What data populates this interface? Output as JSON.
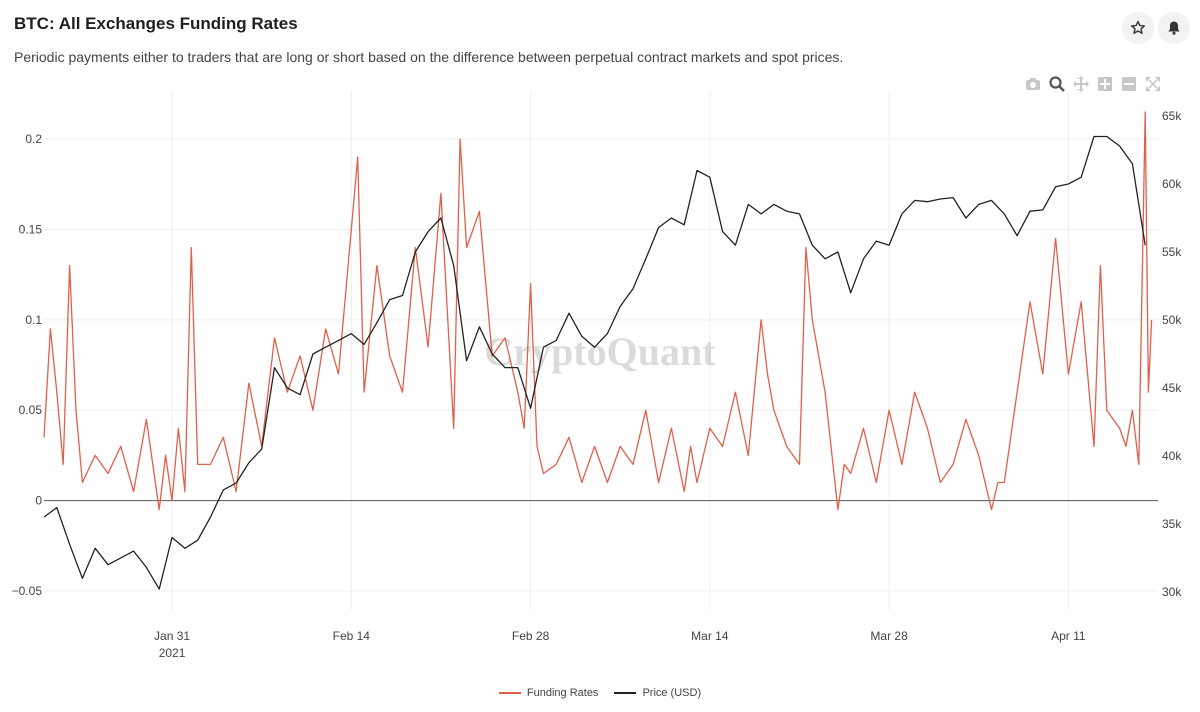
{
  "header": {
    "title": "BTC: All Exchanges Funding Rates",
    "subtitle": "Periodic payments either to traders that are long or short based on the difference between perpetual contract markets and spot prices.",
    "star_icon": "star-icon",
    "bell_icon": "bell-icon"
  },
  "modebar": [
    "camera-icon",
    "zoom-icon",
    "pan-icon",
    "zoom-in-icon",
    "zoom-out-icon",
    "autoscale-icon"
  ],
  "watermark": "CryptoQuant",
  "colors": {
    "funding": "#e0604a",
    "price": "#222222",
    "grid": "#eeeeee",
    "zero": "#555555"
  },
  "chart_data": {
    "type": "line",
    "x_range": [
      "2021-01-21",
      "2021-04-17"
    ],
    "x_ticks": [
      {
        "date": "2021-01-31",
        "label": "Jan 31",
        "sublabel": "2021"
      },
      {
        "date": "2021-02-14",
        "label": "Feb 14",
        "sublabel": ""
      },
      {
        "date": "2021-02-28",
        "label": "Feb 28",
        "sublabel": ""
      },
      {
        "date": "2021-03-14",
        "label": "Mar 14",
        "sublabel": ""
      },
      {
        "date": "2021-03-28",
        "label": "Mar 28",
        "sublabel": ""
      },
      {
        "date": "2021-04-11",
        "label": "Apr 11",
        "sublabel": ""
      }
    ],
    "y_left": {
      "range": [
        -0.055,
        0.215
      ],
      "ticks": [
        -0.05,
        0,
        0.05,
        0.1,
        0.15,
        0.2
      ],
      "tick_labels": [
        "−0.05",
        "0",
        "0.05",
        "0.1",
        "0.15",
        "0.2"
      ]
    },
    "y_right": {
      "range": [
        29400,
        65300
      ],
      "ticks": [
        30000,
        35000,
        40000,
        45000,
        50000,
        55000,
        60000,
        65000
      ],
      "tick_labels": [
        "30k",
        "35k",
        "40k",
        "45k",
        "50k",
        "55k",
        "60k",
        "65k"
      ]
    },
    "grid": true,
    "legend_position": "bottom-center",
    "series": [
      {
        "name": "Funding Rates",
        "axis": "left",
        "points": [
          [
            "2021-01-21",
            0.035
          ],
          [
            "2021-01-21T12",
            0.095
          ],
          [
            "2021-01-22",
            0.06
          ],
          [
            "2021-01-22T12",
            0.02
          ],
          [
            "2021-01-23",
            0.13
          ],
          [
            "2021-01-23T12",
            0.05
          ],
          [
            "2021-01-24",
            0.01
          ],
          [
            "2021-01-25",
            0.025
          ],
          [
            "2021-01-26",
            0.015
          ],
          [
            "2021-01-27",
            0.03
          ],
          [
            "2021-01-28",
            0.005
          ],
          [
            "2021-01-29",
            0.045
          ],
          [
            "2021-01-29T12",
            0.02
          ],
          [
            "2021-01-30",
            -0.005
          ],
          [
            "2021-01-30T12",
            0.025
          ],
          [
            "2021-01-31",
            0.0
          ],
          [
            "2021-01-31T12",
            0.04
          ],
          [
            "2021-02-01",
            0.005
          ],
          [
            "2021-02-01T12",
            0.14
          ],
          [
            "2021-02-02",
            0.02
          ],
          [
            "2021-02-03",
            0.02
          ],
          [
            "2021-02-04",
            0.035
          ],
          [
            "2021-02-05",
            0.005
          ],
          [
            "2021-02-06",
            0.065
          ],
          [
            "2021-02-07",
            0.03
          ],
          [
            "2021-02-08",
            0.09
          ],
          [
            "2021-02-09",
            0.06
          ],
          [
            "2021-02-10",
            0.08
          ],
          [
            "2021-02-11",
            0.05
          ],
          [
            "2021-02-12",
            0.095
          ],
          [
            "2021-02-13",
            0.07
          ],
          [
            "2021-02-14",
            0.15
          ],
          [
            "2021-02-14T12",
            0.19
          ],
          [
            "2021-02-15",
            0.06
          ],
          [
            "2021-02-16",
            0.13
          ],
          [
            "2021-02-17",
            0.08
          ],
          [
            "2021-02-18",
            0.06
          ],
          [
            "2021-02-19",
            0.14
          ],
          [
            "2021-02-20",
            0.085
          ],
          [
            "2021-02-21",
            0.17
          ],
          [
            "2021-02-22",
            0.04
          ],
          [
            "2021-02-22T12",
            0.2
          ],
          [
            "2021-02-23",
            0.14
          ],
          [
            "2021-02-24",
            0.16
          ],
          [
            "2021-02-25",
            0.08
          ],
          [
            "2021-02-26",
            0.09
          ],
          [
            "2021-02-27",
            0.06
          ],
          [
            "2021-02-27T12",
            0.04
          ],
          [
            "2021-02-28",
            0.12
          ],
          [
            "2021-02-28T12",
            0.03
          ],
          [
            "2021-03-01",
            0.015
          ],
          [
            "2021-03-02",
            0.02
          ],
          [
            "2021-03-03",
            0.035
          ],
          [
            "2021-03-04",
            0.01
          ],
          [
            "2021-03-05",
            0.03
          ],
          [
            "2021-03-06",
            0.01
          ],
          [
            "2021-03-07",
            0.03
          ],
          [
            "2021-03-08",
            0.02
          ],
          [
            "2021-03-09",
            0.05
          ],
          [
            "2021-03-10",
            0.01
          ],
          [
            "2021-03-11",
            0.04
          ],
          [
            "2021-03-12",
            0.005
          ],
          [
            "2021-03-12T12",
            0.03
          ],
          [
            "2021-03-13",
            0.01
          ],
          [
            "2021-03-14",
            0.04
          ],
          [
            "2021-03-15",
            0.03
          ],
          [
            "2021-03-16",
            0.06
          ],
          [
            "2021-03-17",
            0.025
          ],
          [
            "2021-03-18",
            0.1
          ],
          [
            "2021-03-18T12",
            0.07
          ],
          [
            "2021-03-19",
            0.05
          ],
          [
            "2021-03-20",
            0.03
          ],
          [
            "2021-03-21",
            0.02
          ],
          [
            "2021-03-21T12",
            0.14
          ],
          [
            "2021-03-22",
            0.1
          ],
          [
            "2021-03-23",
            0.06
          ],
          [
            "2021-03-24",
            -0.005
          ],
          [
            "2021-03-24T12",
            0.02
          ],
          [
            "2021-03-25",
            0.015
          ],
          [
            "2021-03-26",
            0.04
          ],
          [
            "2021-03-27",
            0.01
          ],
          [
            "2021-03-28",
            0.05
          ],
          [
            "2021-03-29",
            0.02
          ],
          [
            "2021-03-30",
            0.06
          ],
          [
            "2021-03-31",
            0.04
          ],
          [
            "2021-04-01",
            0.01
          ],
          [
            "2021-04-02",
            0.02
          ],
          [
            "2021-04-03",
            0.045
          ],
          [
            "2021-04-04",
            0.025
          ],
          [
            "2021-04-05",
            -0.005
          ],
          [
            "2021-04-05T12",
            0.01
          ],
          [
            "2021-04-06",
            0.01
          ],
          [
            "2021-04-07",
            0.06
          ],
          [
            "2021-04-08",
            0.11
          ],
          [
            "2021-04-09",
            0.07
          ],
          [
            "2021-04-10",
            0.145
          ],
          [
            "2021-04-11",
            0.07
          ],
          [
            "2021-04-12",
            0.11
          ],
          [
            "2021-04-13",
            0.03
          ],
          [
            "2021-04-13T12",
            0.13
          ],
          [
            "2021-04-14",
            0.05
          ],
          [
            "2021-04-15",
            0.04
          ],
          [
            "2021-04-15T12",
            0.03
          ],
          [
            "2021-04-16",
            0.05
          ],
          [
            "2021-04-16T12",
            0.02
          ],
          [
            "2021-04-17",
            0.215
          ],
          [
            "2021-04-17T06",
            0.06
          ],
          [
            "2021-04-17T12",
            0.1
          ]
        ]
      },
      {
        "name": "Price (USD)",
        "axis": "right",
        "points": [
          [
            "2021-01-21",
            35500
          ],
          [
            "2021-01-22",
            36200
          ],
          [
            "2021-01-23",
            33500
          ],
          [
            "2021-01-24",
            31000
          ],
          [
            "2021-01-25",
            33200
          ],
          [
            "2021-01-26",
            32000
          ],
          [
            "2021-01-27",
            32500
          ],
          [
            "2021-01-28",
            33000
          ],
          [
            "2021-01-29",
            31800
          ],
          [
            "2021-01-30",
            30200
          ],
          [
            "2021-01-31",
            34000
          ],
          [
            "2021-02-01",
            33200
          ],
          [
            "2021-02-02",
            33800
          ],
          [
            "2021-02-03",
            35500
          ],
          [
            "2021-02-04",
            37500
          ],
          [
            "2021-02-05",
            38000
          ],
          [
            "2021-02-06",
            39500
          ],
          [
            "2021-02-07",
            40500
          ],
          [
            "2021-02-08",
            46500
          ],
          [
            "2021-02-09",
            45000
          ],
          [
            "2021-02-10",
            44500
          ],
          [
            "2021-02-11",
            47500
          ],
          [
            "2021-02-12",
            48000
          ],
          [
            "2021-02-13",
            48500
          ],
          [
            "2021-02-14",
            49000
          ],
          [
            "2021-02-15",
            48200
          ],
          [
            "2021-02-16",
            49800
          ],
          [
            "2021-02-17",
            51500
          ],
          [
            "2021-02-18",
            51800
          ],
          [
            "2021-02-19",
            55000
          ],
          [
            "2021-02-20",
            56500
          ],
          [
            "2021-02-21",
            57500
          ],
          [
            "2021-02-22",
            54000
          ],
          [
            "2021-02-23",
            47000
          ],
          [
            "2021-02-24",
            49500
          ],
          [
            "2021-02-25",
            47500
          ],
          [
            "2021-02-26",
            46500
          ],
          [
            "2021-02-27",
            46500
          ],
          [
            "2021-02-28",
            43500
          ],
          [
            "2021-03-01",
            48000
          ],
          [
            "2021-03-02",
            48500
          ],
          [
            "2021-03-03",
            50500
          ],
          [
            "2021-03-04",
            48800
          ],
          [
            "2021-03-05",
            48000
          ],
          [
            "2021-03-06",
            49000
          ],
          [
            "2021-03-07",
            51000
          ],
          [
            "2021-03-08",
            52300
          ],
          [
            "2021-03-09",
            54500
          ],
          [
            "2021-03-10",
            56800
          ],
          [
            "2021-03-11",
            57500
          ],
          [
            "2021-03-12",
            57000
          ],
          [
            "2021-03-13",
            61000
          ],
          [
            "2021-03-14",
            60500
          ],
          [
            "2021-03-15",
            56500
          ],
          [
            "2021-03-16",
            55500
          ],
          [
            "2021-03-17",
            58500
          ],
          [
            "2021-03-18",
            57800
          ],
          [
            "2021-03-19",
            58500
          ],
          [
            "2021-03-20",
            58000
          ],
          [
            "2021-03-21",
            57800
          ],
          [
            "2021-03-22",
            55500
          ],
          [
            "2021-03-23",
            54500
          ],
          [
            "2021-03-24",
            55000
          ],
          [
            "2021-03-25",
            52000
          ],
          [
            "2021-03-26",
            54500
          ],
          [
            "2021-03-27",
            55800
          ],
          [
            "2021-03-28",
            55500
          ],
          [
            "2021-03-29",
            57800
          ],
          [
            "2021-03-30",
            58800
          ],
          [
            "2021-03-31",
            58700
          ],
          [
            "2021-04-01",
            58900
          ],
          [
            "2021-04-02",
            59000
          ],
          [
            "2021-04-03",
            57500
          ],
          [
            "2021-04-04",
            58500
          ],
          [
            "2021-04-05",
            58800
          ],
          [
            "2021-04-06",
            57800
          ],
          [
            "2021-04-07",
            56200
          ],
          [
            "2021-04-08",
            58000
          ],
          [
            "2021-04-09",
            58100
          ],
          [
            "2021-04-10",
            59800
          ],
          [
            "2021-04-11",
            60000
          ],
          [
            "2021-04-12",
            60500
          ],
          [
            "2021-04-13",
            63500
          ],
          [
            "2021-04-14",
            63500
          ],
          [
            "2021-04-15",
            62800
          ],
          [
            "2021-04-16",
            61500
          ],
          [
            "2021-04-17",
            55500
          ]
        ]
      }
    ]
  }
}
